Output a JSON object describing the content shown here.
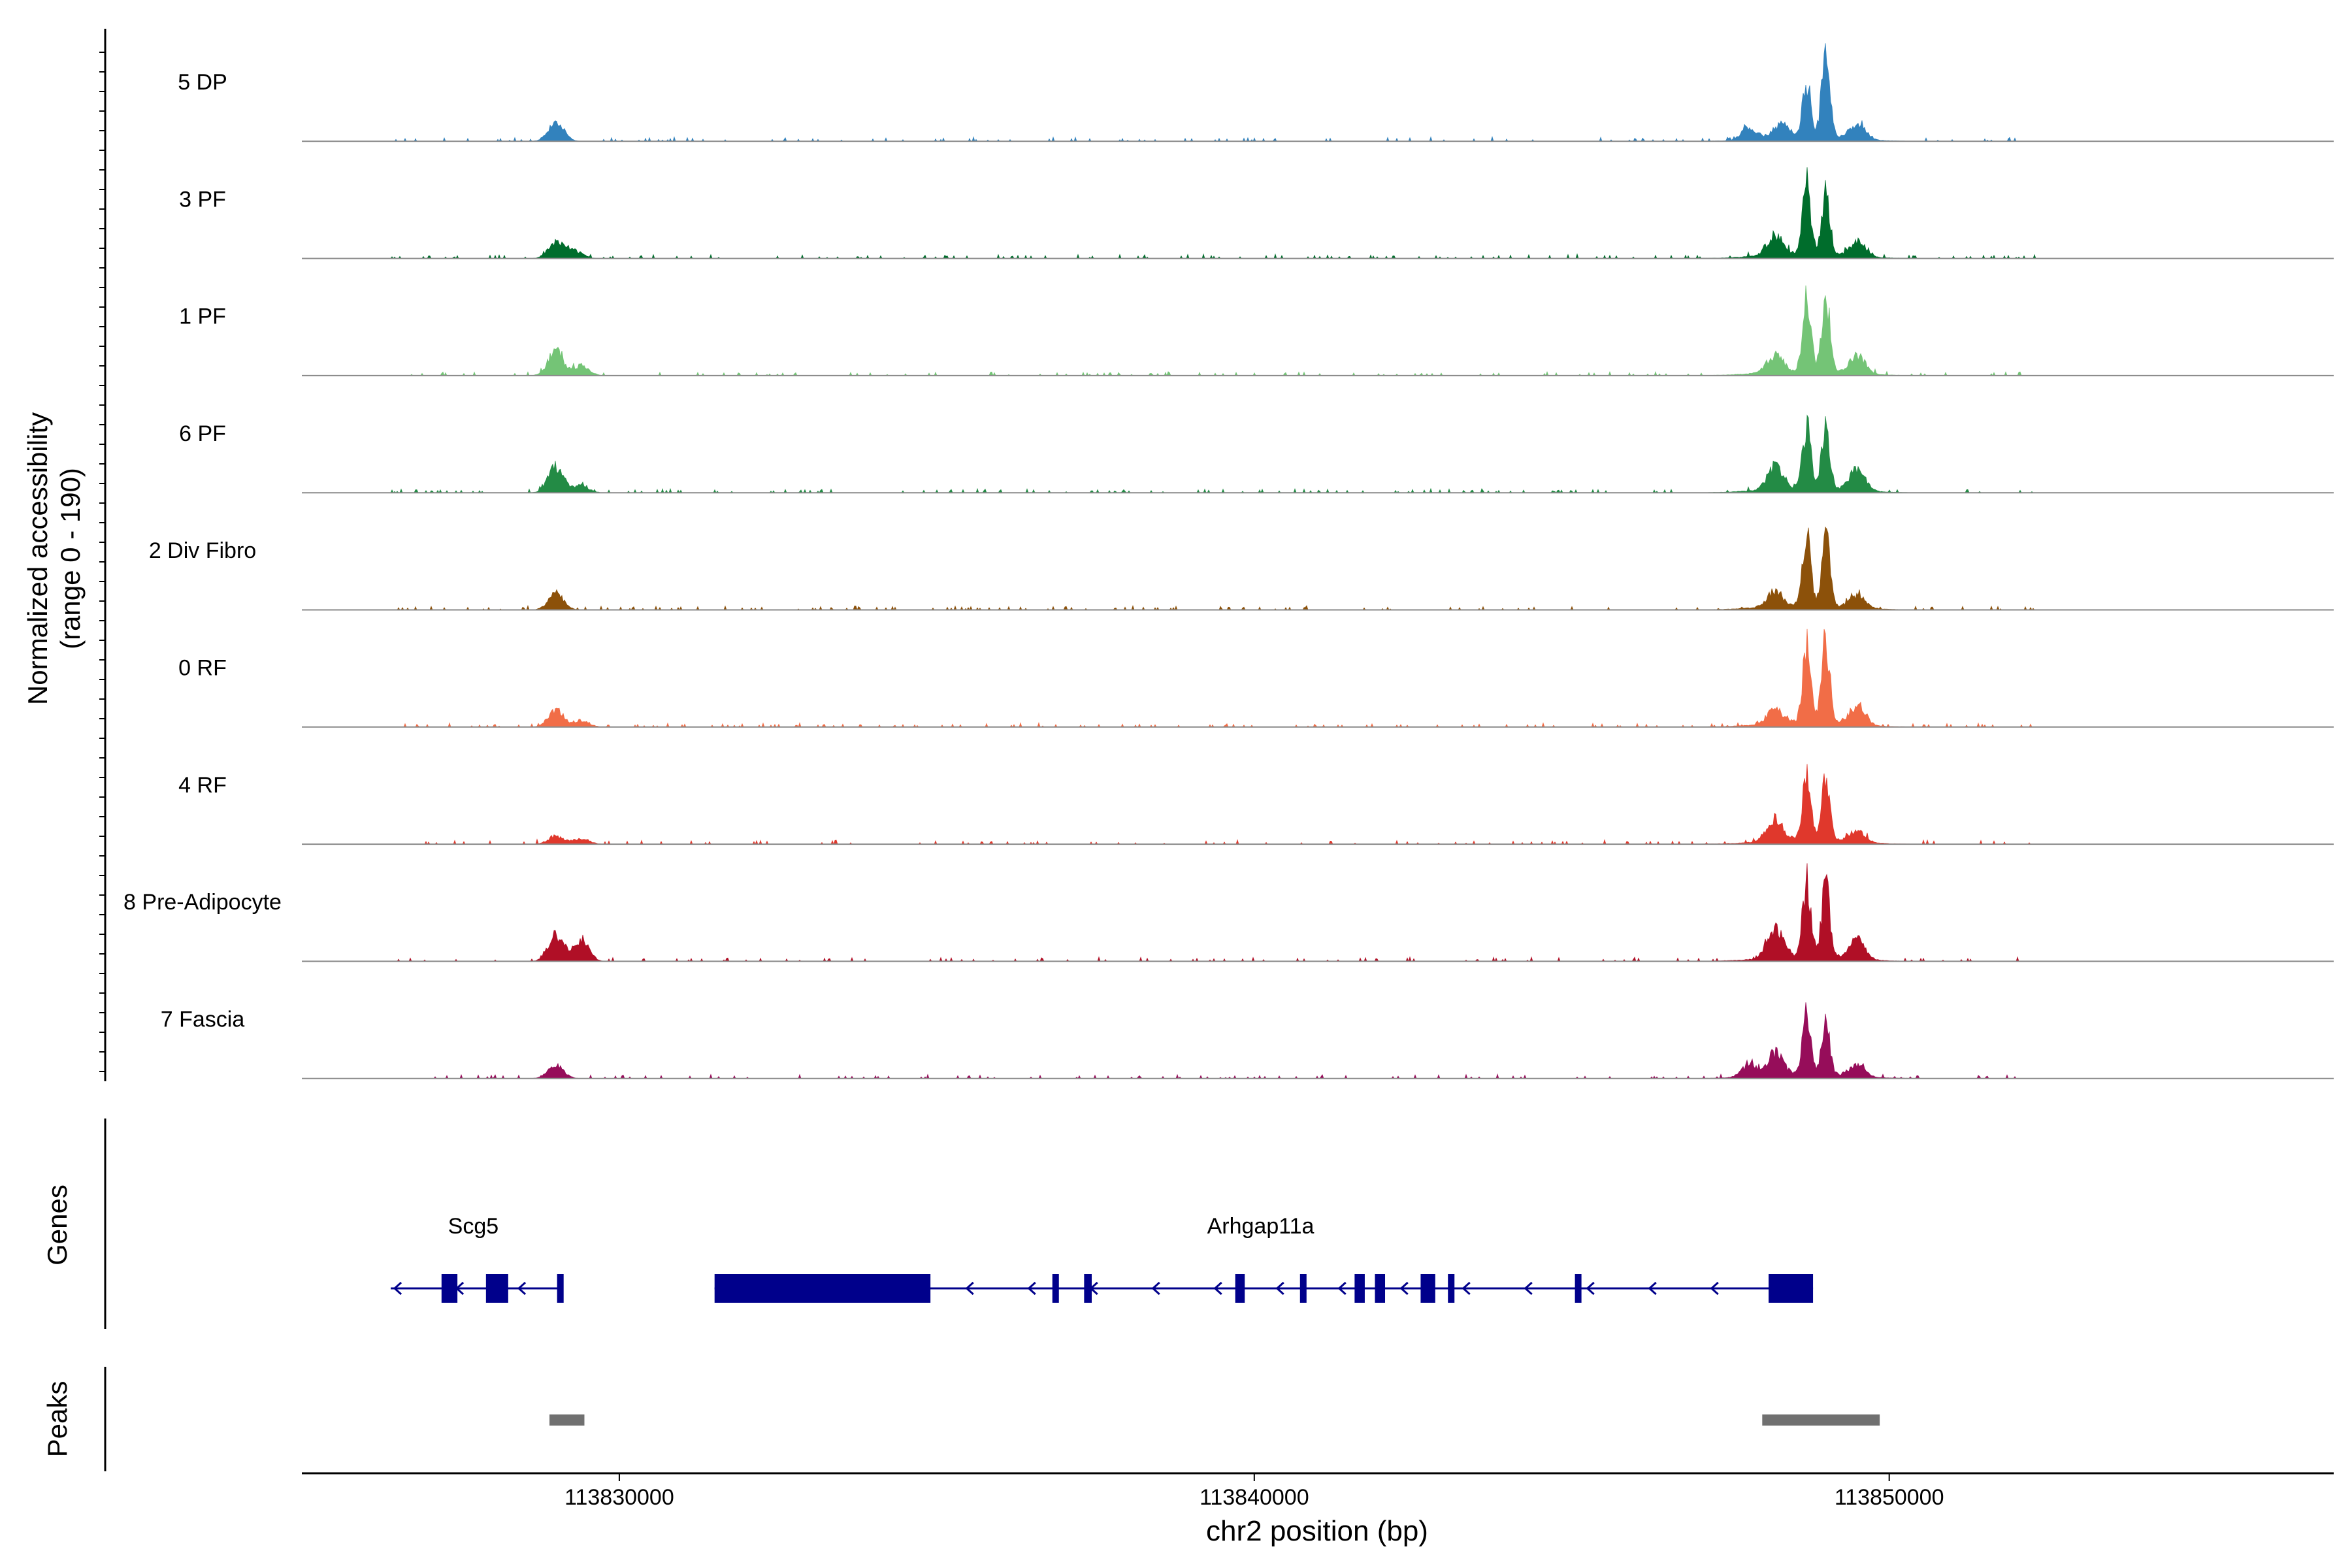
{
  "chart_data": [
    {
      "type": "area",
      "title": "",
      "ylabel": "Normalized accessibility",
      "ylabel_sub": "(range 0 - 190)",
      "y_range": [
        0,
        190
      ],
      "xlim": [
        113825000,
        113857000
      ],
      "tracks": [
        {
          "name": "5 DP",
          "color": "#3282bd",
          "peaks": [
            {
              "pos": 113829000,
              "height": 0.2
            },
            {
              "pos": 113847800,
              "height": 0.12
            },
            {
              "pos": 113848300,
              "height": 0.14
            },
            {
              "pos": 113848700,
              "height": 0.55
            },
            {
              "pos": 113849000,
              "height": 0.85
            },
            {
              "pos": 113849500,
              "height": 0.16
            }
          ]
        },
        {
          "name": "3 PF",
          "color": "#006d2c",
          "peaks": [
            {
              "pos": 113829000,
              "height": 0.16
            },
            {
              "pos": 113829300,
              "height": 0.08
            },
            {
              "pos": 113848200,
              "height": 0.2
            },
            {
              "pos": 113848700,
              "height": 0.7
            },
            {
              "pos": 113849000,
              "height": 0.65
            },
            {
              "pos": 113849500,
              "height": 0.15
            }
          ]
        },
        {
          "name": "1 PF",
          "color": "#74c476",
          "peaks": [
            {
              "pos": 113829000,
              "height": 0.25
            },
            {
              "pos": 113829400,
              "height": 0.1
            },
            {
              "pos": 113848200,
              "height": 0.18
            },
            {
              "pos": 113848700,
              "height": 0.75
            },
            {
              "pos": 113849000,
              "height": 0.78
            },
            {
              "pos": 113849500,
              "height": 0.18
            }
          ]
        },
        {
          "name": "6 PF",
          "color": "#238b45",
          "peaks": [
            {
              "pos": 113829000,
              "height": 0.27
            },
            {
              "pos": 113829400,
              "height": 0.07
            },
            {
              "pos": 113848200,
              "height": 0.22
            },
            {
              "pos": 113848700,
              "height": 0.62
            },
            {
              "pos": 113849000,
              "height": 0.65
            },
            {
              "pos": 113849500,
              "height": 0.22
            }
          ]
        },
        {
          "name": "2 Div Fibro",
          "color": "#8c510a",
          "peaks": [
            {
              "pos": 113829000,
              "height": 0.17
            },
            {
              "pos": 113848200,
              "height": 0.15
            },
            {
              "pos": 113848700,
              "height": 0.75
            },
            {
              "pos": 113849000,
              "height": 0.7
            },
            {
              "pos": 113849500,
              "height": 0.12
            }
          ]
        },
        {
          "name": "0 RF",
          "color": "#f16d47",
          "peaks": [
            {
              "pos": 113829000,
              "height": 0.17
            },
            {
              "pos": 113829400,
              "height": 0.07
            },
            {
              "pos": 113848200,
              "height": 0.15
            },
            {
              "pos": 113848700,
              "height": 0.78
            },
            {
              "pos": 113849000,
              "height": 0.82
            },
            {
              "pos": 113849500,
              "height": 0.2
            }
          ]
        },
        {
          "name": "4 RF",
          "color": "#e0382c",
          "peaks": [
            {
              "pos": 113829000,
              "height": 0.08
            },
            {
              "pos": 113829400,
              "height": 0.06
            },
            {
              "pos": 113848200,
              "height": 0.22
            },
            {
              "pos": 113848700,
              "height": 0.65
            },
            {
              "pos": 113849000,
              "height": 0.6
            },
            {
              "pos": 113849500,
              "height": 0.12
            }
          ]
        },
        {
          "name": "8 Pre-Adipocyte",
          "color": "#b00f26",
          "peaks": [
            {
              "pos": 113829000,
              "height": 0.27
            },
            {
              "pos": 113829400,
              "height": 0.22
            },
            {
              "pos": 113848200,
              "height": 0.3
            },
            {
              "pos": 113848700,
              "height": 0.78
            },
            {
              "pos": 113849000,
              "height": 0.75
            },
            {
              "pos": 113849500,
              "height": 0.2
            }
          ]
        },
        {
          "name": "7 Fascia",
          "color": "#960d5a",
          "peaks": [
            {
              "pos": 113829000,
              "height": 0.14
            },
            {
              "pos": 113847800,
              "height": 0.12
            },
            {
              "pos": 113848200,
              "height": 0.22
            },
            {
              "pos": 113848700,
              "height": 0.65
            },
            {
              "pos": 113849000,
              "height": 0.5
            },
            {
              "pos": 113849500,
              "height": 0.12
            }
          ]
        }
      ]
    },
    {
      "type": "gene-annotation",
      "ylabel": "Genes",
      "genes": [
        {
          "name": "Scg5",
          "label_pos": 113827700,
          "strand": "-",
          "start": 113826400,
          "end": 113829100,
          "exons": [
            [
              113827200,
              113827450
            ],
            [
              113827900,
              113828250
            ],
            [
              113829020,
              113829100
            ]
          ]
        },
        {
          "name": "Arhgap11a",
          "label_pos": 113840100,
          "strand": "-",
          "start": 113831500,
          "end": 113848800,
          "exons": [
            [
              113831500,
              113834900
            ],
            [
              113836820,
              113836920
            ],
            [
              113837320,
              113837440
            ],
            [
              113839700,
              113839850
            ],
            [
              113840720,
              113840780
            ],
            [
              113841580,
              113841740
            ],
            [
              113841900,
              113842060
            ],
            [
              113842620,
              113842850
            ],
            [
              113843050,
              113843120
            ],
            [
              113845050,
              113845100
            ],
            [
              113848100,
              113848800
            ]
          ]
        }
      ],
      "color": "#00008b"
    },
    {
      "type": "peaks",
      "ylabel": "Peaks",
      "peaks": [
        [
          113828900,
          113829450
        ],
        [
          113848000,
          113849850
        ]
      ],
      "color": "#707070"
    },
    {
      "type": "axis",
      "xlabel": "chr2 position (bp)",
      "ticks": [
        113830000,
        113840000,
        113850000
      ],
      "tick_labels": [
        "113830000",
        "113840000",
        "113850000"
      ]
    }
  ]
}
